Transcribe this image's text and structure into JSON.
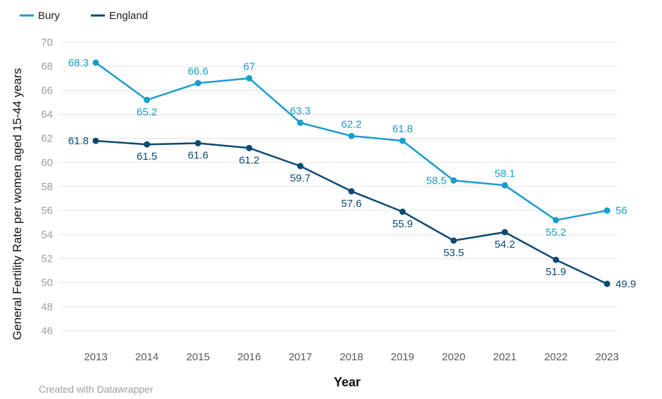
{
  "chart_data": {
    "type": "line",
    "title": "",
    "xlabel": "Year",
    "ylabel": "General Fertility Rate per women aged 15-44 years",
    "ylim": [
      46,
      70
    ],
    "yticks": [
      46,
      48,
      50,
      52,
      54,
      56,
      58,
      60,
      62,
      64,
      66,
      68,
      70
    ],
    "grid": true,
    "legend": "top-left",
    "categories": [
      "2013",
      "2014",
      "2015",
      "2016",
      "2017",
      "2018",
      "2019",
      "2020",
      "2021",
      "2022",
      "2023"
    ],
    "series": [
      {
        "name": "Bury",
        "color": "#1b9ccc",
        "values": [
          68.3,
          65.2,
          66.6,
          67,
          63.3,
          62.2,
          61.8,
          58.5,
          58.1,
          55.2,
          56
        ],
        "labels": [
          "68.3",
          "65.2",
          "66.6",
          "67",
          "63.3",
          "62.2",
          "61.8",
          "58.5",
          "58.1",
          "55.2",
          "56"
        ]
      },
      {
        "name": "England",
        "color": "#0b4a72",
        "values": [
          61.8,
          61.5,
          61.6,
          61.2,
          59.7,
          57.6,
          55.9,
          53.5,
          54.2,
          51.9,
          49.9
        ],
        "labels": [
          "61.8",
          "61.5",
          "61.6",
          "61.2",
          "59.7",
          "57.6",
          "55.9",
          "53.5",
          "54.2",
          "51.9",
          "49.9"
        ]
      }
    ]
  },
  "footer": {
    "credit": "Created with Datawrapper"
  }
}
